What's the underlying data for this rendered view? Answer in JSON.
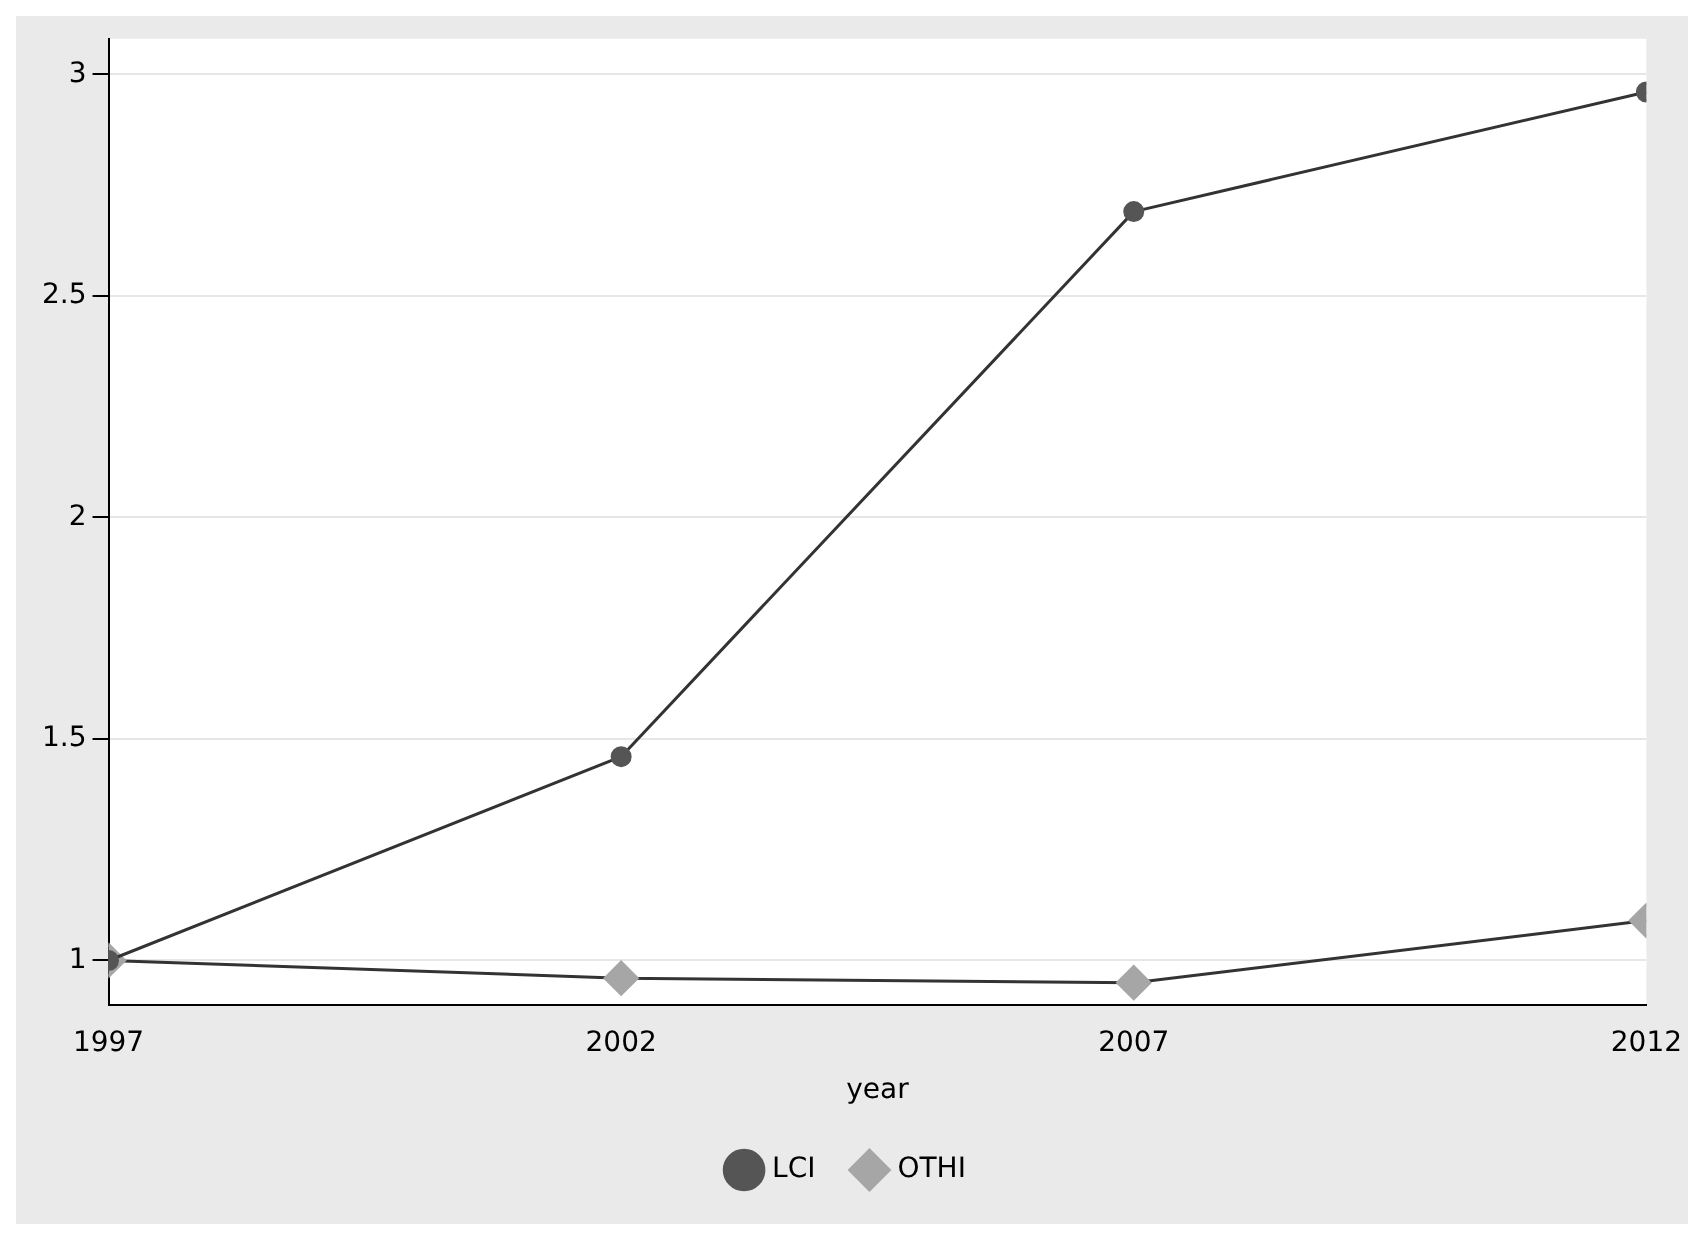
{
  "chart_data": {
    "type": "line",
    "xlabel": "year",
    "x": [
      1997,
      2002,
      2007,
      2012
    ],
    "series": [
      {
        "name": "LCI",
        "color": "#555555",
        "marker": "circle",
        "values": [
          1,
          1.46,
          2.69,
          2.96
        ]
      },
      {
        "name": "OTHI",
        "color": "#a6a6a6",
        "marker": "diamond",
        "values": [
          1,
          0.96,
          0.95,
          1.09
        ]
      }
    ],
    "xlim": [
      1997,
      2012
    ],
    "xticks": [
      1997,
      2002,
      2007,
      2012
    ],
    "ylim": [
      0.9,
      3.08
    ],
    "yticks": [
      1,
      1.5,
      2,
      2.5,
      3
    ],
    "grid": "y",
    "legend": "bottom"
  }
}
